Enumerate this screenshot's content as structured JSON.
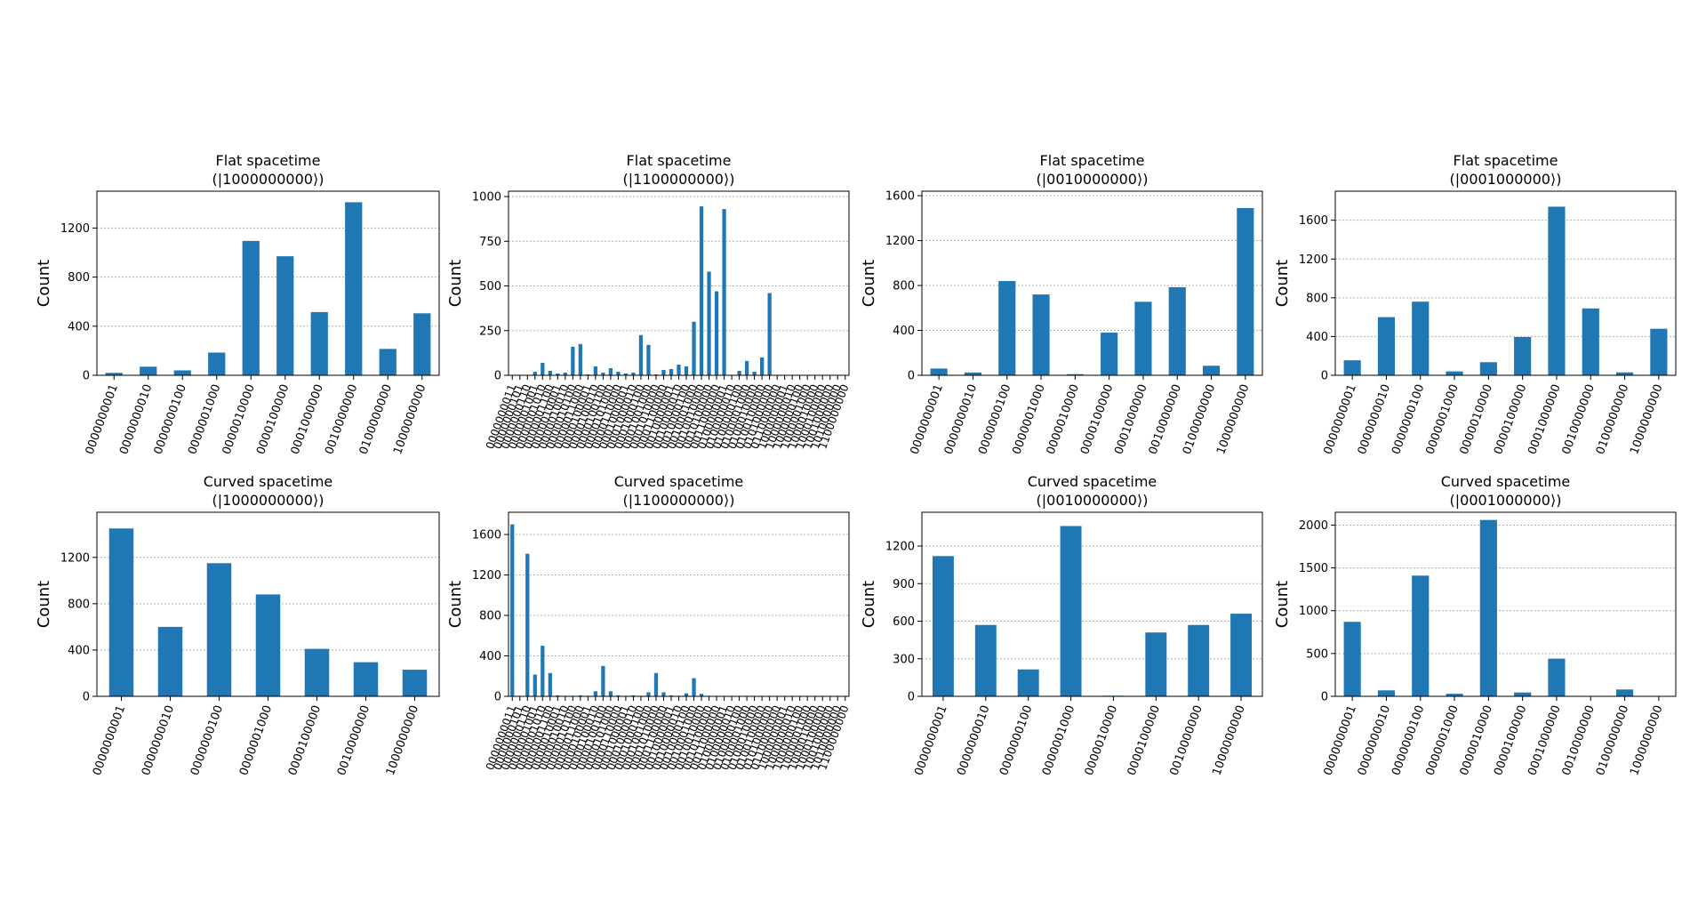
{
  "colors": {
    "bar": "#1f77b4"
  },
  "chart_data": [
    {
      "type": "bar",
      "title": "Flat spacetime",
      "subtitle": "(|1000000000⟩)",
      "ylabel": "Count",
      "ylim": [
        0,
        1500
      ],
      "yticks": [
        0,
        400,
        800,
        1200
      ],
      "categories": [
        "0000000001",
        "0000000010",
        "0000000100",
        "0000001000",
        "0000010000",
        "0000100000",
        "0001000000",
        "0010000000",
        "0100000000",
        "1000000000"
      ],
      "values": [
        20,
        70,
        40,
        185,
        1095,
        970,
        515,
        1410,
        215,
        505
      ]
    },
    {
      "type": "bar",
      "title": "Flat spacetime",
      "subtitle": "(|1100000000⟩)",
      "ylabel": "Count",
      "ylim": [
        0,
        1030
      ],
      "yticks": [
        0,
        250,
        500,
        750,
        1000
      ],
      "categories": [
        "0000000011",
        "0000000101",
        "0000000110",
        "0000001001",
        "0000001010",
        "0000001100",
        "0000010001",
        "0000010010",
        "0000010100",
        "0000011000",
        "0000100001",
        "0000100010",
        "0000100100",
        "0000101000",
        "0000110000",
        "0001000001",
        "0001000010",
        "0001000100",
        "0001001000",
        "0001010000",
        "0001100000",
        "0010000001",
        "0010000010",
        "0010000100",
        "0010001000",
        "0010010000",
        "0010100000",
        "0011000000",
        "0100000001",
        "0100000010",
        "0100000100",
        "0100001000",
        "0100010000",
        "0100100000",
        "0101000000",
        "0110000000",
        "1000000001",
        "1000000010",
        "1000000100",
        "1000001000",
        "1000010000",
        "1000100000",
        "1001000000",
        "1010000000",
        "1100000000"
      ],
      "values": [
        2,
        2,
        2,
        20,
        70,
        25,
        10,
        15,
        160,
        175,
        5,
        50,
        15,
        40,
        20,
        10,
        15,
        225,
        170,
        5,
        30,
        35,
        60,
        50,
        300,
        945,
        580,
        470,
        930,
        2,
        25,
        80,
        20,
        100,
        460,
        2,
        2,
        2,
        2,
        2,
        2,
        2,
        2,
        2,
        2
      ],
      "xtick_labels": [
        "0000000011",
        "0000000101",
        "0000000110",
        "0000001001",
        "0000001010",
        "0000001100",
        "0000010001",
        "0000010010",
        "0000010100",
        "0000011000",
        "0000100001",
        "0000100010",
        "0000100100",
        "0000101000",
        "0000110000",
        "0001000001",
        "0001000010",
        "0001000100",
        "0001001000",
        "0001010000",
        "0001100000",
        "0010000001",
        "0010000010",
        "0010000100",
        "0010001000",
        "0010010000",
        "0010100000",
        "0011000000",
        "0100000001",
        "0100000010",
        "0100000100",
        "0100001000",
        "0100010000",
        "0100100000",
        "0101000000",
        "0110000000",
        "1000000001",
        "1000000010",
        "1000000100",
        "1000001000",
        "1000010000",
        "1000100000",
        "1001000000",
        "1010000000",
        "1100000000"
      ]
    },
    {
      "type": "bar",
      "title": "Flat spacetime",
      "subtitle": "(|0010000000⟩)",
      "ylabel": "Count",
      "ylim": [
        0,
        1640
      ],
      "yticks": [
        0,
        400,
        800,
        1200,
        1600
      ],
      "categories": [
        "0000000001",
        "0000000010",
        "0000000100",
        "0000001000",
        "0000010000",
        "0000100000",
        "0001000000",
        "0010000000",
        "0100000000",
        "1000000000"
      ],
      "values": [
        60,
        25,
        840,
        720,
        10,
        380,
        655,
        785,
        85,
        1490
      ]
    },
    {
      "type": "bar",
      "title": "Flat spacetime",
      "subtitle": "(|0001000000⟩)",
      "ylabel": "Count",
      "ylim": [
        0,
        1900
      ],
      "yticks": [
        0,
        400,
        800,
        1200,
        1600
      ],
      "categories": [
        "0000000001",
        "0000000010",
        "0000000100",
        "0000001000",
        "0000010000",
        "0000100000",
        "0001000000",
        "0010000000",
        "0100000000",
        "1000000000"
      ],
      "values": [
        155,
        600,
        760,
        40,
        135,
        395,
        1740,
        690,
        30,
        480
      ]
    },
    {
      "type": "bar",
      "title": "Curved spacetime",
      "subtitle": "(|1000000000⟩)",
      "ylabel": "Count",
      "ylim": [
        0,
        1590
      ],
      "yticks": [
        0,
        400,
        800,
        1200
      ],
      "categories": [
        "0000000001",
        "0000000010",
        "0000000100",
        "0000001000",
        "0000100000",
        "0010000000",
        "1000000000"
      ],
      "values": [
        1450,
        600,
        1150,
        880,
        410,
        295,
        230
      ]
    },
    {
      "type": "bar",
      "title": "Curved spacetime",
      "subtitle": "(|1100000000⟩)",
      "ylabel": "Count",
      "ylim": [
        0,
        1820
      ],
      "yticks": [
        0,
        400,
        800,
        1200,
        1600
      ],
      "categories": [
        "0000000011",
        "0000000101",
        "0000000110",
        "0000001001",
        "0000001010",
        "0000001100",
        "0000010001",
        "0000010010",
        "0000010100",
        "0000011000",
        "0000100001",
        "0000100010",
        "0000100100",
        "0000101000",
        "0000110000",
        "0001000001",
        "0001000010",
        "0001000100",
        "0001001000",
        "0001010000",
        "0001100000",
        "0010000001",
        "0010000010",
        "0010000100",
        "0010001000",
        "0010010000",
        "0010100000",
        "0011000000",
        "0100000001",
        "0100000010",
        "0100000100",
        "0100001000",
        "0100010000",
        "0100100000",
        "0101000000",
        "0110000000",
        "1000000001",
        "1000000010",
        "1000000100",
        "1000001000",
        "1000010000",
        "1000100000",
        "1001000000",
        "1010000000",
        "1100000000"
      ],
      "values": [
        1700,
        2,
        1410,
        215,
        500,
        230,
        10,
        5,
        5,
        10,
        5,
        50,
        300,
        50,
        10,
        5,
        10,
        5,
        40,
        230,
        40,
        10,
        5,
        30,
        180,
        25,
        5,
        2,
        2,
        2,
        2,
        2,
        2,
        2,
        2,
        2,
        2,
        2,
        2,
        2,
        2,
        2,
        2,
        2,
        2
      ],
      "xtick_labels": [
        "0000000011",
        "0000000101",
        "0000000110",
        "0000001001",
        "0000001010",
        "0000001100",
        "0000010001",
        "0000010010",
        "0000010100",
        "0000011000",
        "0000100001",
        "0000100010",
        "0000100100",
        "0000101000",
        "0000110000",
        "0001000001",
        "0001000010",
        "0001000100",
        "0001001000",
        "0001010000",
        "0001100000",
        "0010000001",
        "0010000010",
        "0010000100",
        "0010001000",
        "0010010000",
        "0010100000",
        "0011000000",
        "0100000001",
        "0100000010",
        "0100000100",
        "0100001000",
        "0100010000",
        "0100100000",
        "0101000000",
        "0110000000",
        "1000000001",
        "1000000010",
        "1000000100",
        "1000001000",
        "1000010000",
        "1000100000",
        "1001000000",
        "1010000000",
        "1100000000"
      ]
    },
    {
      "type": "bar",
      "title": "Curved spacetime",
      "subtitle": "(|0010000000⟩)",
      "ylabel": "Count",
      "ylim": [
        0,
        1470
      ],
      "yticks": [
        0,
        300,
        600,
        900,
        1200
      ],
      "categories": [
        "0000000001",
        "0000000010",
        "0000000100",
        "0000001000",
        "0000010000",
        "0000100000",
        "0010000000",
        "1000000000"
      ],
      "values": [
        1120,
        570,
        215,
        1360,
        5,
        510,
        570,
        660
      ]
    },
    {
      "type": "bar",
      "title": "Curved spacetime",
      "subtitle": "(|0001000000⟩)",
      "ylabel": "Count",
      "ylim": [
        0,
        2150
      ],
      "yticks": [
        0,
        500,
        1000,
        1500,
        2000
      ],
      "categories": [
        "0000000001",
        "0000000010",
        "0000000100",
        "0000001000",
        "0000010000",
        "0000100000",
        "0001000000",
        "0010000000",
        "0100000000",
        "1000000000"
      ],
      "values": [
        870,
        70,
        1410,
        30,
        2060,
        45,
        440,
        2,
        80,
        2
      ]
    }
  ]
}
